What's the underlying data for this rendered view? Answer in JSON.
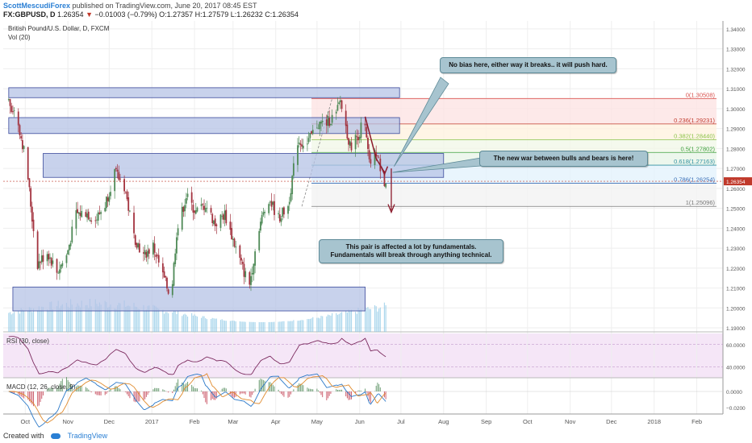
{
  "header": {
    "author": "ScottMescudiForex",
    "published": "published on TradingView.com, June 20, 2017 08:45 EST"
  },
  "quote": {
    "symbol": "FX:GBPUSD, D",
    "last": "1.26354",
    "change": "−0.01003 (−0.79%)",
    "open": "O:1.27357",
    "high": "H:1.27579",
    "low": "L:1.26232",
    "close": "C:1.26354"
  },
  "instrument_title": "British Pound/U.S. Dollar, D, FXCM",
  "vol_label": "Vol (20)",
  "rsi_label": "RSI (30, close)",
  "macd_label": "MACD (12, 26, close, 9)",
  "notes": {
    "top": "No bias here, either way it breaks.. it will push hard.",
    "middle": "The new war between bulls and bears is here!",
    "bottom": "This pair is affected a lot by fundamentals. Fundamentals will break through anything technical."
  },
  "footer": {
    "created_with": "Created with",
    "brand": "TradingView"
  },
  "colors": {
    "bull": "#4f8a57",
    "bear": "#a3333f",
    "zone_fill": "#b6c3e6",
    "zone_stroke": "#3b4a9c",
    "volume": "#8cc8e6",
    "rsi": "#7b2a5e",
    "macd": "#2a78c8",
    "signal": "#e08a2c",
    "last_price_tag": "#c0392b"
  },
  "chart_data": {
    "type": "candlestick",
    "x_ticks": [
      "Oct",
      "Nov",
      "Dec",
      "2017",
      "Feb",
      "Mar",
      "Apr",
      "May",
      "Jun",
      "Jul",
      "Aug",
      "Sep",
      "Oct",
      "Nov",
      "Dec",
      "2018",
      "Feb"
    ],
    "y_ticks": [
      "1.34000",
      "1.33000",
      "1.32000",
      "1.31000",
      "1.30000",
      "1.29000",
      "1.28000",
      "1.27000",
      "1.26000",
      "1.25000",
      "1.24000",
      "1.23000",
      "1.22000",
      "1.21000",
      "1.20000",
      "1.19000"
    ],
    "ylim": [
      1.188,
      1.344
    ],
    "last_price": "1.26354",
    "fib_levels": [
      {
        "ratio": 0,
        "price": 1.30508,
        "label": "0(1.30508)",
        "color": "#d9534f"
      },
      {
        "ratio": 0.236,
        "price": 1.29231,
        "label": "0.236(1.29231)",
        "color": "#c0392b"
      },
      {
        "ratio": 0.382,
        "price": 1.2844,
        "label": "0.382(1.28440)",
        "color": "#8bc34a"
      },
      {
        "ratio": 0.5,
        "price": 1.27802,
        "label": "0.5(1.27802)",
        "color": "#3c9e3c"
      },
      {
        "ratio": 0.618,
        "price": 1.27163,
        "label": "0.618(1.27163)",
        "color": "#2f8fa0"
      },
      {
        "ratio": 0.786,
        "price": 1.26254,
        "label": "0.786(1.26254)",
        "color": "#3a6fb7"
      },
      {
        "ratio": 1,
        "price": 1.25096,
        "label": "1(1.25096)",
        "color": "#777777"
      }
    ],
    "zones": [
      {
        "x_start": "2016-09-19",
        "x_end": "2017-06-30",
        "y_low": 1.3055,
        "y_high": 1.3105
      },
      {
        "x_start": "2016-09-19",
        "x_end": "2017-06-30",
        "y_low": 1.2875,
        "y_high": 1.2955
      },
      {
        "x_start": "2016-10-14",
        "x_end": "2017-08-01",
        "y_low": 1.2655,
        "y_high": 1.2775
      },
      {
        "x_start": "2016-09-22",
        "x_end": "2017-06-05",
        "y_low": 1.1985,
        "y_high": 1.2105
      }
    ],
    "price_path": [
      [
        "2016-09-19",
        1.305
      ],
      [
        "2016-09-26",
        1.296
      ],
      [
        "2016-10-03",
        1.272
      ],
      [
        "2016-10-07",
        1.245
      ],
      [
        "2016-10-11",
        1.222
      ],
      [
        "2016-10-18",
        1.228
      ],
      [
        "2016-10-25",
        1.218
      ],
      [
        "2016-11-01",
        1.226
      ],
      [
        "2016-11-08",
        1.247
      ],
      [
        "2016-11-15",
        1.248
      ],
      [
        "2016-11-22",
        1.244
      ],
      [
        "2016-11-29",
        1.252
      ],
      [
        "2016-12-06",
        1.268
      ],
      [
        "2016-12-13",
        1.261
      ],
      [
        "2016-12-20",
        1.236
      ],
      [
        "2016-12-27",
        1.226
      ],
      [
        "2017-01-03",
        1.231
      ],
      [
        "2017-01-10",
        1.216
      ],
      [
        "2017-01-16",
        1.205
      ],
      [
        "2017-01-20",
        1.238
      ],
      [
        "2017-01-27",
        1.256
      ],
      [
        "2017-02-03",
        1.248
      ],
      [
        "2017-02-10",
        1.252
      ],
      [
        "2017-02-17",
        1.242
      ],
      [
        "2017-02-24",
        1.247
      ],
      [
        "2017-03-03",
        1.232
      ],
      [
        "2017-03-10",
        1.218
      ],
      [
        "2017-03-14",
        1.212
      ],
      [
        "2017-03-21",
        1.241
      ],
      [
        "2017-03-28",
        1.255
      ],
      [
        "2017-04-04",
        1.245
      ],
      [
        "2017-04-11",
        1.251
      ],
      [
        "2017-04-18",
        1.284
      ],
      [
        "2017-04-25",
        1.282
      ],
      [
        "2017-05-02",
        1.292
      ],
      [
        "2017-05-09",
        1.293
      ],
      [
        "2017-05-16",
        1.297
      ],
      [
        "2017-05-19",
        1.304
      ],
      [
        "2017-05-26",
        1.281
      ],
      [
        "2017-06-02",
        1.288
      ],
      [
        "2017-06-05",
        1.296
      ],
      [
        "2017-06-09",
        1.272
      ],
      [
        "2017-06-14",
        1.278
      ],
      [
        "2017-06-20",
        1.2635
      ]
    ],
    "rsi": {
      "yticks": [
        "60.0000",
        "40.0000"
      ],
      "ylim": [
        30,
        70
      ]
    },
    "macd": {
      "yticks": [
        "0.0000",
        "−0.0200"
      ],
      "ylim": [
        -0.028,
        0.015
      ]
    }
  }
}
